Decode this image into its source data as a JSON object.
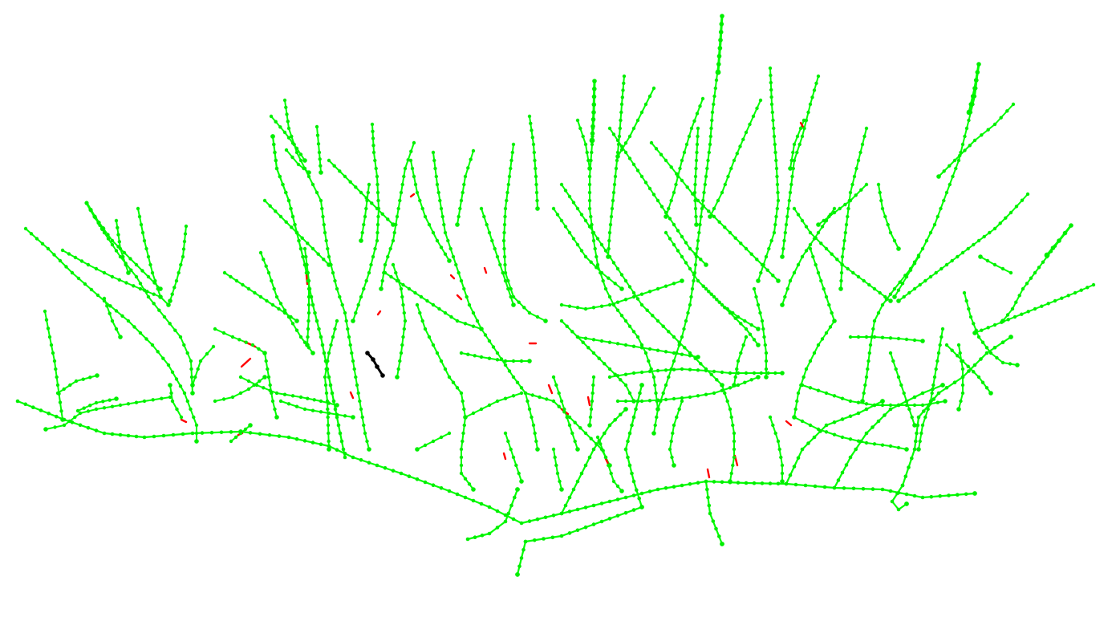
{
  "figure": {
    "kind": "tree skeleton graph",
    "background_color": "#ffffff"
  },
  "colors": {
    "skeleton_edge": "#00ff00",
    "skeleton_node": "#00ee00",
    "highlight_edge": "#ff0000",
    "selected_segment": "#000000"
  },
  "legend": []
}
